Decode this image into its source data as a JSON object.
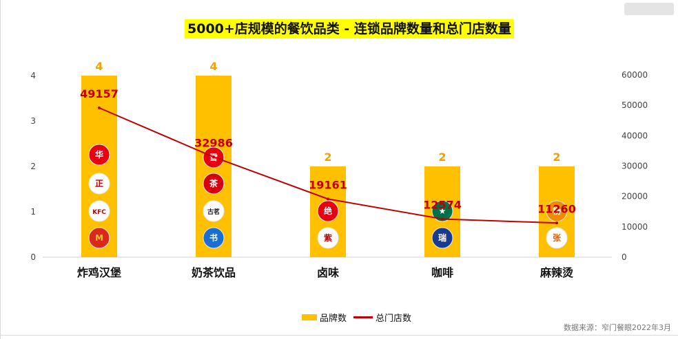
{
  "title": "5000+店规模的餐饮品类 - 连锁品牌数量和总门店数量",
  "source": "数据来源：窄门餐眼2022年3月",
  "legend": {
    "bar_label": "品牌数",
    "line_label": "总门店数"
  },
  "colors": {
    "bar": "#ffc000",
    "line": "#c00000",
    "bar_label": "#f4a100",
    "line_label": "#c00000",
    "title_bg": "#ffff00"
  },
  "chart_data": {
    "type": "bar",
    "categories": [
      "炸鸡汉堡",
      "奶茶饮品",
      "卤味",
      "咖啡",
      "麻辣烫"
    ],
    "series": [
      {
        "name": "品牌数",
        "type": "bar",
        "axis": "left",
        "values": [
          4,
          4,
          2,
          2,
          2
        ]
      },
      {
        "name": "总门店数",
        "type": "line",
        "axis": "right",
        "values": [
          49157,
          32986,
          19161,
          12574,
          11260
        ]
      }
    ],
    "y_left": {
      "ylim": [
        0,
        4
      ],
      "ticks": [
        "0",
        "1",
        "2",
        "3",
        "4"
      ]
    },
    "y_right": {
      "ylim": [
        0,
        60000
      ],
      "ticks": [
        "0",
        "10000",
        "20000",
        "30000",
        "40000",
        "50000",
        "60000"
      ]
    },
    "grid": false,
    "legend_position": "bottom"
  },
  "brand_logos": [
    [
      "wallace-logo",
      "zhengxin-chicken-logo",
      "kfc-logo",
      "mcdonalds-logo"
    ],
    [
      "mixue-logo",
      "chabaidao-logo",
      "guming-logo",
      "shuyi-logo"
    ],
    [
      "juewei-logo",
      "ziyanbaiwei-logo"
    ],
    [
      "starbucks-logo",
      "luckin-logo"
    ],
    [
      "yanglaoshi-logo",
      "zhangliang-logo"
    ]
  ],
  "logo_texts": {
    "wallace": "华莱士",
    "kfc": "KFC",
    "guming": "古茗",
    "juewei": "绝",
    "yanglaoshi": "杨国福"
  }
}
